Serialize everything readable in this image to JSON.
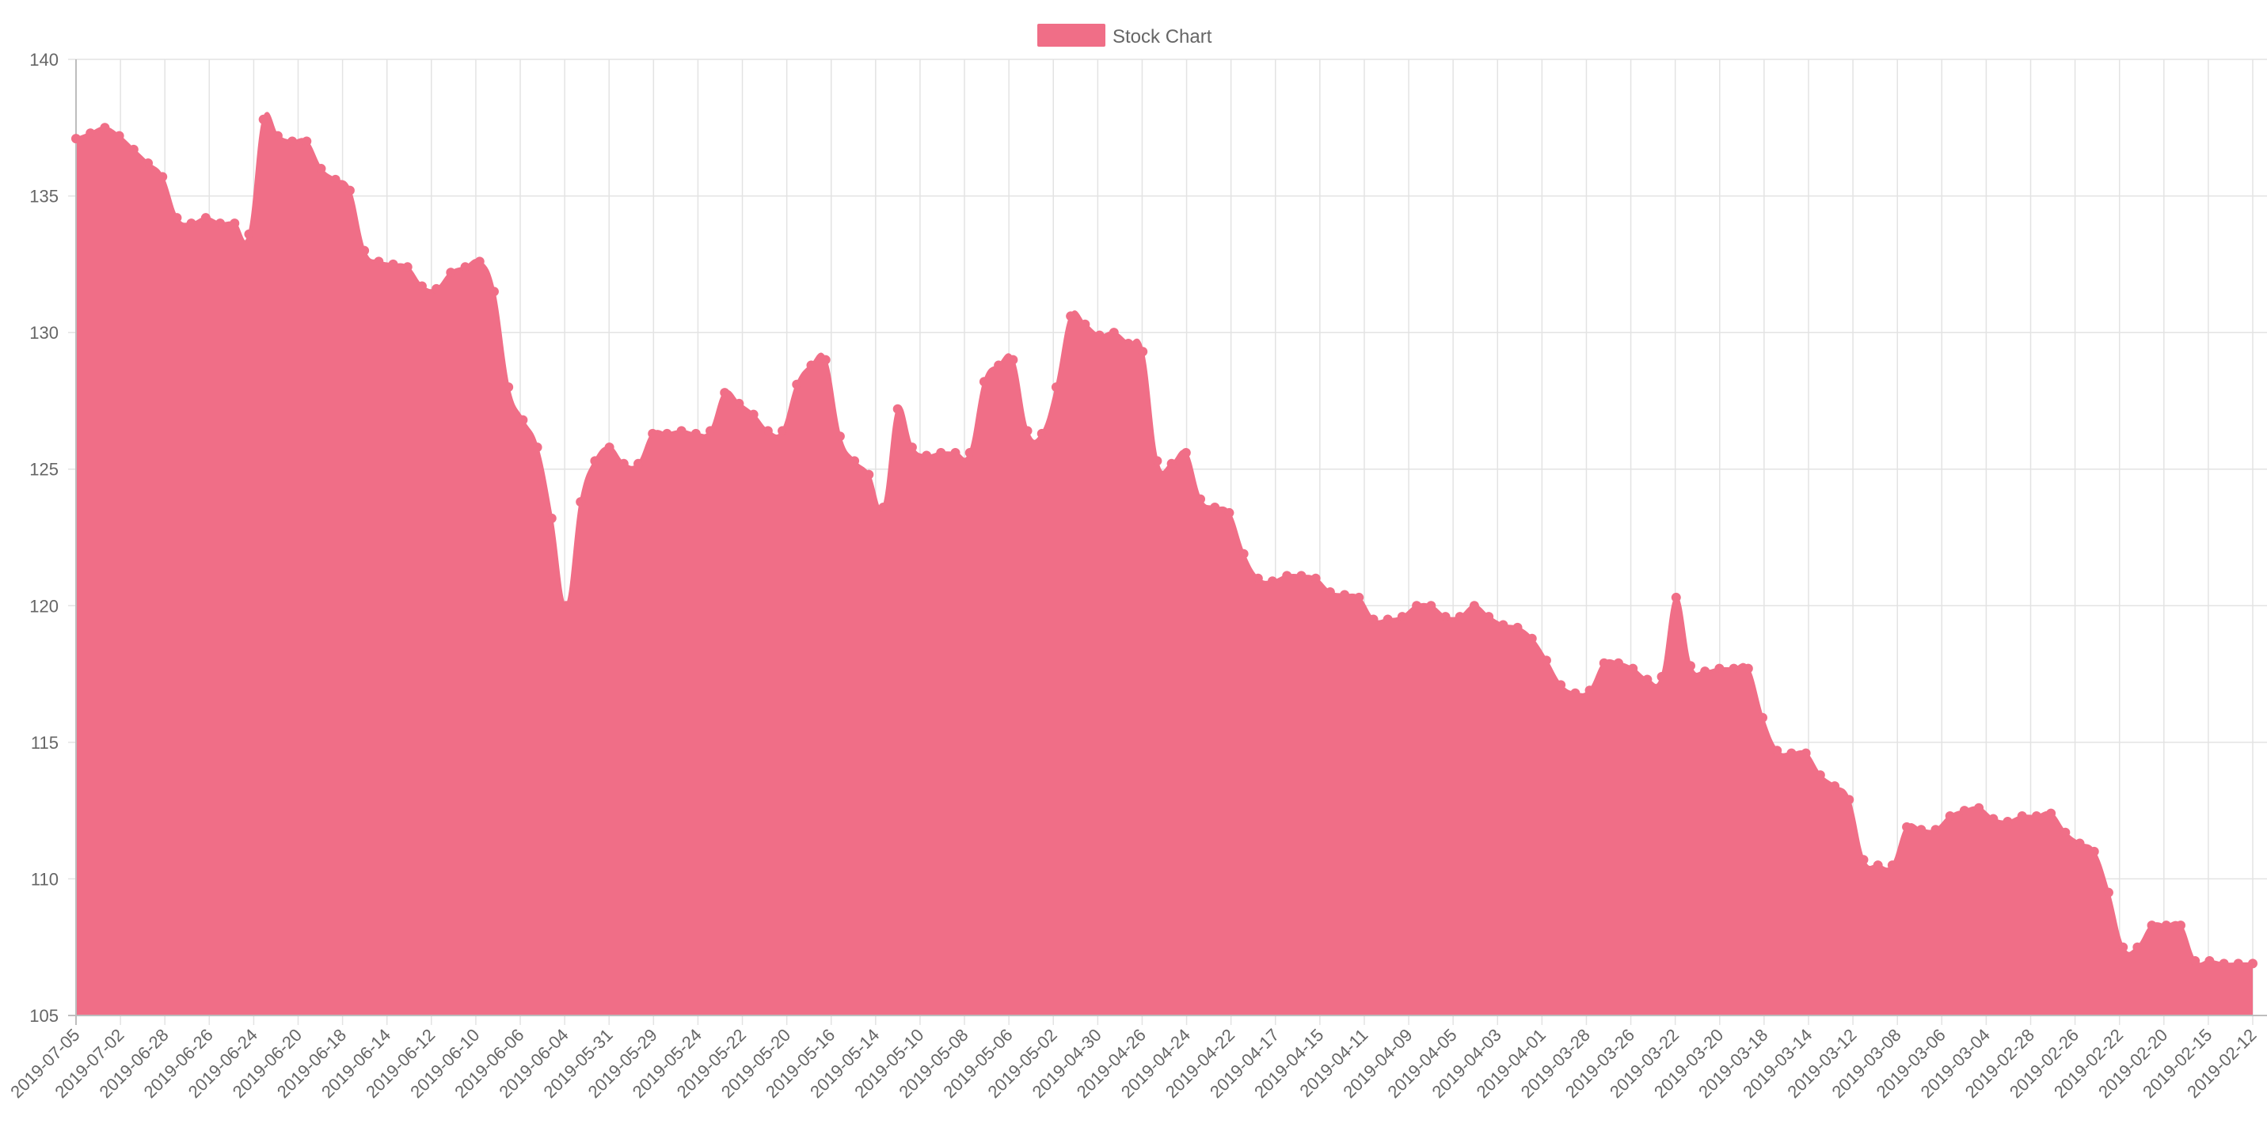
{
  "chart_data": {
    "type": "area",
    "title": "",
    "xlabel": "",
    "ylabel": "",
    "ylim": [
      105,
      140
    ],
    "y_ticks": [
      105,
      110,
      115,
      120,
      125,
      130,
      135,
      140
    ],
    "grid": true,
    "legend_position": "top-center",
    "x_ticks": [
      "2019-07-05",
      "2019-07-02",
      "2019-06-28",
      "2019-06-26",
      "2019-06-24",
      "2019-06-20",
      "2019-06-18",
      "2019-06-14",
      "2019-06-12",
      "2019-06-10",
      "2019-06-06",
      "2019-06-04",
      "2019-05-31",
      "2019-05-29",
      "2019-05-24",
      "2019-05-22",
      "2019-05-20",
      "2019-05-16",
      "2019-05-14",
      "2019-05-10",
      "2019-05-08",
      "2019-05-06",
      "2019-05-02",
      "2019-04-30",
      "2019-04-26",
      "2019-04-24",
      "2019-04-22",
      "2019-04-17",
      "2019-04-15",
      "2019-04-11",
      "2019-04-09",
      "2019-04-05",
      "2019-04-03",
      "2019-04-01",
      "2019-03-28",
      "2019-03-26",
      "2019-03-22",
      "2019-03-20",
      "2019-03-18",
      "2019-03-14",
      "2019-03-12",
      "2019-03-08",
      "2019-03-06",
      "2019-03-04",
      "2019-02-28",
      "2019-02-26",
      "2019-02-22",
      "2019-02-20",
      "2019-02-15",
      "2019-02-12"
    ],
    "series": [
      {
        "name": "Stock Chart",
        "color": "#f06e87",
        "values": [
          137.1,
          137.3,
          137.5,
          137.2,
          136.7,
          136.2,
          135.7,
          134.2,
          134.0,
          134.2,
          134.0,
          134.0,
          133.6,
          137.8,
          137.2,
          137.0,
          137.0,
          136.0,
          135.6,
          135.2,
          133.0,
          132.6,
          132.5,
          132.4,
          131.7,
          131.6,
          132.2,
          132.4,
          132.6,
          131.5,
          128.0,
          126.8,
          125.8,
          123.2,
          120.0,
          123.8,
          125.3,
          125.8,
          125.2,
          125.2,
          126.3,
          126.3,
          126.4,
          126.3,
          126.4,
          127.8,
          127.4,
          127.0,
          126.4,
          126.4,
          128.1,
          128.8,
          129.0,
          126.2,
          125.3,
          124.8,
          123.6,
          127.2,
          125.8,
          125.5,
          125.6,
          125.6,
          125.6,
          128.2,
          128.8,
          129.0,
          126.4,
          126.3,
          128.0,
          130.6,
          130.3,
          129.9,
          130.0,
          129.6,
          129.3,
          125.3,
          125.2,
          125.6,
          123.9,
          123.6,
          123.4,
          121.9,
          121.0,
          120.9,
          121.1,
          121.1,
          121.0,
          120.5,
          120.4,
          120.3,
          119.5,
          119.5,
          119.6,
          120.0,
          120.0,
          119.6,
          119.6,
          120.0,
          119.6,
          119.3,
          119.2,
          118.8,
          118.0,
          117.1,
          116.8,
          116.9,
          117.9,
          117.9,
          117.7,
          117.3,
          117.4,
          120.3,
          117.8,
          117.6,
          117.7,
          117.7,
          117.7,
          115.9,
          114.7,
          114.6,
          114.6,
          113.8,
          113.4,
          112.9,
          110.7,
          110.5,
          110.5,
          111.9,
          111.8,
          111.8,
          112.3,
          112.5,
          112.6,
          112.2,
          112.1,
          112.3,
          112.3,
          112.4,
          111.7,
          111.3,
          111.0,
          109.5,
          107.5,
          107.5,
          108.3,
          108.3,
          108.3,
          107.0,
          107.0,
          106.9,
          106.9,
          106.9
        ]
      }
    ]
  }
}
